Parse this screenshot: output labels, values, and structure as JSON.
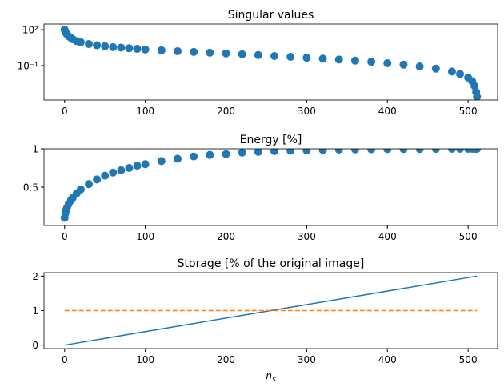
{
  "chart_data": [
    {
      "type": "scatter",
      "title": "Singular values",
      "log_y": true,
      "color": "#1f77b4",
      "x": [
        0,
        1,
        2,
        3,
        5,
        8,
        10,
        15,
        20,
        30,
        40,
        50,
        60,
        70,
        80,
        90,
        100,
        120,
        140,
        160,
        180,
        200,
        220,
        240,
        260,
        280,
        300,
        320,
        340,
        360,
        380,
        400,
        420,
        440,
        460,
        480,
        490,
        500,
        505,
        508,
        510,
        511
      ],
      "values": [
        100,
        70,
        50,
        40,
        28,
        20,
        16,
        11,
        9,
        6.3,
        5,
        4.2,
        3.5,
        3.2,
        2.8,
        2.5,
        2.2,
        1.9,
        1.6,
        1.4,
        1.2,
        1.05,
        0.89,
        0.76,
        0.63,
        0.54,
        0.45,
        0.38,
        0.32,
        0.26,
        0.21,
        0.16,
        0.12,
        0.085,
        0.056,
        0.032,
        0.02,
        0.01,
        0.005,
        0.002,
        0.0006,
        0.00025
      ],
      "xlim": [
        -25.55,
        536.55
      ],
      "xticks": [
        0,
        100,
        200,
        300,
        400,
        500
      ],
      "ylim": [
        0.000135,
        295
      ],
      "yticks": [
        {
          "value": 100,
          "label": "10²"
        },
        {
          "value": 0.1,
          "label": "10⁻¹"
        }
      ]
    },
    {
      "type": "scatter",
      "title": "Energy [%]",
      "color": "#1f77b4",
      "x": [
        0,
        1,
        2,
        3,
        5,
        8,
        10,
        15,
        20,
        30,
        40,
        50,
        60,
        70,
        80,
        90,
        100,
        120,
        140,
        160,
        180,
        200,
        220,
        240,
        260,
        280,
        300,
        320,
        340,
        360,
        380,
        400,
        420,
        440,
        460,
        480,
        490,
        500,
        505,
        508,
        510,
        511
      ],
      "values": [
        0.1,
        0.16,
        0.2,
        0.23,
        0.28,
        0.33,
        0.36,
        0.42,
        0.47,
        0.54,
        0.6,
        0.65,
        0.69,
        0.72,
        0.75,
        0.78,
        0.8,
        0.84,
        0.87,
        0.9,
        0.92,
        0.93,
        0.95,
        0.96,
        0.97,
        0.975,
        0.98,
        0.985,
        0.99,
        0.992,
        0.994,
        0.996,
        0.997,
        0.998,
        0.999,
        1.0,
        1.0,
        1.0,
        1.0,
        1.0,
        1.0,
        1.0
      ],
      "xlim": [
        -25.55,
        536.55
      ],
      "xticks": [
        0,
        100,
        200,
        300,
        400,
        500
      ],
      "ylim": [
        0.0,
        1.0
      ],
      "yticks": [
        0.5,
        1.0
      ]
    },
    {
      "type": "line",
      "title": "Storage [% of the original image]",
      "xlabel": "ns",
      "x": [
        0,
        511
      ],
      "series": [
        {
          "color": "#1f77b4",
          "linestyle": "solid",
          "values": [
            0,
            2
          ]
        },
        {
          "color": "#ff7f0e",
          "linestyle": "dashed",
          "values": [
            1,
            1
          ]
        }
      ],
      "xlim": [
        -25.55,
        536.55
      ],
      "xticks": [
        0,
        100,
        200,
        300,
        400,
        500
      ],
      "ylim": [
        -0.1,
        2.1
      ],
      "yticks": [
        0,
        1,
        2
      ]
    }
  ]
}
